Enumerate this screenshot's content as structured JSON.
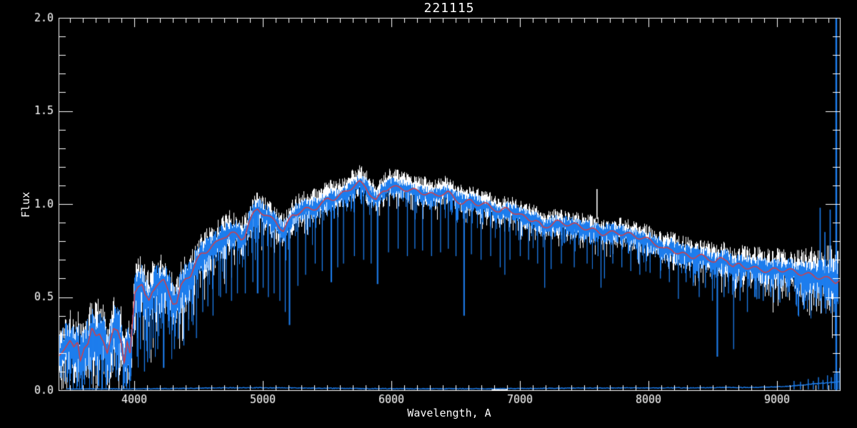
{
  "window": {
    "background": "#000000"
  },
  "chart_data": {
    "type": "line",
    "title": "221115",
    "xlabel": "Wavelength, A",
    "ylabel": "Flux",
    "xlim": [
      3411,
      9489
    ],
    "ylim": [
      0.0,
      2.0
    ],
    "x_major_ticks": [
      4000,
      5000,
      6000,
      7000,
      8000,
      9000
    ],
    "x_tick_labels": [
      "4000",
      "5000",
      "6000",
      "7000",
      "8000",
      "9000"
    ],
    "x_minor_step": 100,
    "y_major_ticks": [
      0.0,
      0.5,
      1.0,
      1.5,
      2.0
    ],
    "y_tick_labels": [
      "0.0",
      "0.5",
      "1.0",
      "1.5",
      "2.0"
    ],
    "y_minor_step": 0.1,
    "grid": false,
    "legend": null,
    "colors": {
      "background": "#000000",
      "axis": "#ffffff",
      "observed_spectrum": "#ffffff",
      "overlay_spectrum": "#1d7ded",
      "model_fit": "#e13b3b",
      "error_spectrum": "#1d7ded"
    },
    "series": [
      {
        "name": "observed-spectrum",
        "color": "#ffffff",
        "role": "noisy-background"
      },
      {
        "name": "overlay-spectrum",
        "color": "#1d7ded",
        "role": "noisy-foreground-with-absorption-spikes"
      },
      {
        "name": "model-fit",
        "color": "#e13b3b",
        "role": "smooth-model"
      },
      {
        "name": "error-spectrum",
        "color": "#1d7ded",
        "role": "bottom-error-array"
      }
    ],
    "noise_seed": 1337,
    "model_points": [
      [
        3411,
        0.17
      ],
      [
        3450,
        0.22
      ],
      [
        3470,
        0.24
      ],
      [
        3500,
        0.26
      ],
      [
        3530,
        0.22
      ],
      [
        3560,
        0.26
      ],
      [
        3580,
        0.17
      ],
      [
        3610,
        0.24
      ],
      [
        3640,
        0.25
      ],
      [
        3670,
        0.33
      ],
      [
        3700,
        0.3
      ],
      [
        3730,
        0.32
      ],
      [
        3760,
        0.27
      ],
      [
        3790,
        0.19
      ],
      [
        3815,
        0.26
      ],
      [
        3840,
        0.33
      ],
      [
        3870,
        0.33
      ],
      [
        3895,
        0.27
      ],
      [
        3922,
        0.13
      ],
      [
        3945,
        0.24
      ],
      [
        3968,
        0.18
      ],
      [
        3990,
        0.4
      ],
      [
        4005,
        0.53
      ],
      [
        4030,
        0.56
      ],
      [
        4060,
        0.56
      ],
      [
        4085,
        0.5
      ],
      [
        4115,
        0.48
      ],
      [
        4140,
        0.54
      ],
      [
        4170,
        0.57
      ],
      [
        4200,
        0.58
      ],
      [
        4230,
        0.59
      ],
      [
        4260,
        0.55
      ],
      [
        4300,
        0.48
      ],
      [
        4330,
        0.47
      ],
      [
        4360,
        0.55
      ],
      [
        4400,
        0.6
      ],
      [
        4440,
        0.62
      ],
      [
        4480,
        0.68
      ],
      [
        4520,
        0.72
      ],
      [
        4560,
        0.74
      ],
      [
        4600,
        0.77
      ],
      [
        4650,
        0.79
      ],
      [
        4700,
        0.83
      ],
      [
        4750,
        0.85
      ],
      [
        4790,
        0.84
      ],
      [
        4830,
        0.82
      ],
      [
        4860,
        0.84
      ],
      [
        4890,
        0.9
      ],
      [
        4930,
        0.95
      ],
      [
        4960,
        0.975
      ],
      [
        5000,
        0.95
      ],
      [
        5048,
        0.92
      ],
      [
        5100,
        0.9
      ],
      [
        5160,
        0.85
      ],
      [
        5200,
        0.9
      ],
      [
        5233,
        0.94
      ],
      [
        5280,
        0.96
      ],
      [
        5330,
        0.975
      ],
      [
        5380,
        0.98
      ],
      [
        5420,
        0.99
      ],
      [
        5470,
        1.01
      ],
      [
        5510,
        1.03
      ],
      [
        5560,
        1.03
      ],
      [
        5600,
        1.04
      ],
      [
        5650,
        1.06
      ],
      [
        5700,
        1.09
      ],
      [
        5750,
        1.11
      ],
      [
        5800,
        1.09
      ],
      [
        5845,
        1.05
      ],
      [
        5881,
        1.02
      ],
      [
        5910,
        1.05
      ],
      [
        5940,
        1.08
      ],
      [
        5990,
        1.1
      ],
      [
        6040,
        1.09
      ],
      [
        6090,
        1.085
      ],
      [
        6150,
        1.07
      ],
      [
        6220,
        1.06
      ],
      [
        6280,
        1.05
      ],
      [
        6340,
        1.04
      ],
      [
        6400,
        1.06
      ],
      [
        6440,
        1.065
      ],
      [
        6500,
        1.03
      ],
      [
        6560,
        1.01
      ],
      [
        6620,
        1.02
      ],
      [
        6680,
        1.0
      ],
      [
        6740,
        0.99
      ],
      [
        6800,
        0.97
      ],
      [
        6844,
        0.95
      ],
      [
        6900,
        0.97
      ],
      [
        6950,
        0.96
      ],
      [
        7000,
        0.94
      ],
      [
        7060,
        0.93
      ],
      [
        7120,
        0.92
      ],
      [
        7180,
        0.875
      ],
      [
        7230,
        0.89
      ],
      [
        7280,
        0.9
      ],
      [
        7340,
        0.89
      ],
      [
        7400,
        0.885
      ],
      [
        7460,
        0.875
      ],
      [
        7520,
        0.87
      ],
      [
        7580,
        0.86
      ],
      [
        7640,
        0.85
      ],
      [
        7700,
        0.85
      ],
      [
        7760,
        0.85
      ],
      [
        7820,
        0.84
      ],
      [
        7880,
        0.825
      ],
      [
        7940,
        0.815
      ],
      [
        8000,
        0.8
      ],
      [
        8060,
        0.785
      ],
      [
        8120,
        0.755
      ],
      [
        8180,
        0.765
      ],
      [
        8240,
        0.74
      ],
      [
        8300,
        0.73
      ],
      [
        8360,
        0.72
      ],
      [
        8420,
        0.715
      ],
      [
        8480,
        0.7
      ],
      [
        8520,
        0.68
      ],
      [
        8560,
        0.695
      ],
      [
        8610,
        0.7
      ],
      [
        8660,
        0.66
      ],
      [
        8710,
        0.675
      ],
      [
        8760,
        0.67
      ],
      [
        8820,
        0.66
      ],
      [
        8880,
        0.655
      ],
      [
        8940,
        0.64
      ],
      [
        9000,
        0.645
      ],
      [
        9060,
        0.64
      ],
      [
        9120,
        0.632
      ],
      [
        9180,
        0.625
      ],
      [
        9240,
        0.62
      ],
      [
        9300,
        0.617
      ],
      [
        9360,
        0.61
      ],
      [
        9420,
        0.6
      ],
      [
        9455,
        0.59
      ],
      [
        9489,
        0.6
      ]
    ],
    "noise_amplitude": [
      [
        3411,
        0.12
      ],
      [
        3700,
        0.12
      ],
      [
        3900,
        0.11
      ],
      [
        4100,
        0.1
      ],
      [
        4300,
        0.09
      ],
      [
        4600,
        0.08
      ],
      [
        4900,
        0.06
      ],
      [
        5200,
        0.05
      ],
      [
        5600,
        0.045
      ],
      [
        6000,
        0.042
      ],
      [
        6500,
        0.04
      ],
      [
        7000,
        0.04
      ],
      [
        7500,
        0.042
      ],
      [
        8000,
        0.045
      ],
      [
        8400,
        0.05
      ],
      [
        8800,
        0.055
      ],
      [
        9100,
        0.065
      ],
      [
        9300,
        0.08
      ],
      [
        9489,
        0.1
      ]
    ],
    "white_top_bias": [
      [
        3411,
        0.0
      ],
      [
        5000,
        0.01
      ],
      [
        5600,
        0.03
      ],
      [
        6200,
        0.03
      ],
      [
        6800,
        0.02
      ],
      [
        7200,
        0.01
      ],
      [
        8000,
        0.015
      ],
      [
        8700,
        0.02
      ],
      [
        9489,
        0.03
      ]
    ],
    "deep_absorption_spikes": [
      [
        3556,
        0.02
      ],
      [
        3585,
        0.08
      ],
      [
        3611,
        0.03
      ],
      [
        3660,
        0.1
      ],
      [
        3700,
        0.08
      ],
      [
        3722,
        0.02
      ],
      [
        3760,
        0.1
      ],
      [
        3800,
        0.04
      ],
      [
        3830,
        0.1
      ],
      [
        3855,
        0.07
      ],
      [
        3880,
        0.12
      ],
      [
        3911,
        0.01
      ],
      [
        3933,
        0.02
      ],
      [
        3968,
        0.05
      ],
      [
        4020,
        0.18
      ],
      [
        4045,
        0.22
      ],
      [
        4077,
        0.1
      ],
      [
        4101,
        0.15
      ],
      [
        4144,
        0.28
      ],
      [
        4180,
        0.22
      ],
      [
        4226,
        0.12
      ],
      [
        4272,
        0.3
      ],
      [
        4310,
        0.22
      ],
      [
        4340,
        0.28
      ],
      [
        4383,
        0.24
      ],
      [
        4420,
        0.32
      ],
      [
        4455,
        0.35
      ],
      [
        4481,
        0.28
      ],
      [
        4530,
        0.42
      ],
      [
        4570,
        0.45
      ],
      [
        4610,
        0.4
      ],
      [
        4668,
        0.5
      ],
      [
        4712,
        0.52
      ],
      [
        4754,
        0.48
      ],
      [
        4800,
        0.52
      ],
      [
        4861,
        0.52
      ],
      [
        4920,
        0.58
      ],
      [
        4957,
        0.52
      ],
      [
        5000,
        0.55
      ],
      [
        5040,
        0.5
      ],
      [
        5085,
        0.52
      ],
      [
        5130,
        0.48
      ],
      [
        5172,
        0.42
      ],
      [
        5205,
        0.35
      ],
      [
        5270,
        0.56
      ],
      [
        5330,
        0.62
      ],
      [
        5405,
        0.68
      ],
      [
        5460,
        0.64
      ],
      [
        5530,
        0.58
      ],
      [
        5580,
        0.66
      ],
      [
        5625,
        0.68
      ],
      [
        5710,
        0.72
      ],
      [
        5782,
        0.7
      ],
      [
        5840,
        0.68
      ],
      [
        5890,
        0.57
      ],
      [
        5975,
        0.74
      ],
      [
        6050,
        0.76
      ],
      [
        6122,
        0.72
      ],
      [
        6180,
        0.76
      ],
      [
        6240,
        0.75
      ],
      [
        6310,
        0.72
      ],
      [
        6380,
        0.74
      ],
      [
        6440,
        0.76
      ],
      [
        6500,
        0.72
      ],
      [
        6563,
        0.4
      ],
      [
        6620,
        0.73
      ],
      [
        6695,
        0.7
      ],
      [
        6770,
        0.72
      ],
      [
        6844,
        0.66
      ],
      [
        6880,
        0.62
      ],
      [
        6920,
        0.7
      ],
      [
        7000,
        0.72
      ],
      [
        7065,
        0.7
      ],
      [
        7135,
        0.68
      ],
      [
        7190,
        0.55
      ],
      [
        7240,
        0.65
      ],
      [
        7320,
        0.68
      ],
      [
        7420,
        0.66
      ],
      [
        7520,
        0.68
      ],
      [
        7605,
        0.72
      ],
      [
        7628,
        0.55
      ],
      [
        7655,
        0.6
      ],
      [
        7720,
        0.68
      ],
      [
        7790,
        0.66
      ],
      [
        7860,
        0.64
      ],
      [
        7930,
        0.62
      ],
      [
        8010,
        0.63
      ],
      [
        8090,
        0.6
      ],
      [
        8160,
        0.58
      ],
      [
        8230,
        0.49
      ],
      [
        8290,
        0.58
      ],
      [
        8345,
        0.56
      ],
      [
        8392,
        0.5
      ],
      [
        8440,
        0.55
      ],
      [
        8495,
        0.48
      ],
      [
        8533,
        0.18
      ],
      [
        8585,
        0.5
      ],
      [
        8620,
        0.52
      ],
      [
        8660,
        0.22
      ],
      [
        8710,
        0.48
      ],
      [
        8767,
        0.42
      ],
      [
        8830,
        0.5
      ],
      [
        8890,
        0.48
      ],
      [
        8950,
        0.5
      ],
      [
        9020,
        0.47
      ],
      [
        9080,
        0.5
      ],
      [
        9150,
        0.45
      ],
      [
        9220,
        0.48
      ],
      [
        9300,
        0.45
      ],
      [
        9370,
        0.44
      ],
      [
        9440,
        0.42
      ]
    ],
    "up_spikes": [
      {
        "wl": 7597,
        "lo": 0.92,
        "hi": 1.08,
        "color": "white"
      },
      {
        "wl": 9333,
        "lo": 0.48,
        "hi": 0.98,
        "color": "blue"
      },
      {
        "wl": 9370,
        "lo": 0.5,
        "hi": 0.85,
        "color": "blue"
      },
      {
        "wl": 9411,
        "lo": 0.45,
        "hi": 0.97,
        "color": "blue"
      }
    ],
    "full_height_lines": [
      {
        "wl": 9461,
        "lo": 0.0,
        "hi": 2.0,
        "color": "blue"
      }
    ],
    "error_points": [
      [
        3470,
        0.007
      ],
      [
        3800,
        0.007
      ],
      [
        4200,
        0.008
      ],
      [
        4600,
        0.012
      ],
      [
        5000,
        0.013
      ],
      [
        5300,
        0.012
      ],
      [
        5600,
        0.01
      ],
      [
        6000,
        0.008
      ],
      [
        6400,
        0.008
      ],
      [
        6800,
        0.008
      ],
      [
        7200,
        0.01
      ],
      [
        7600,
        0.012
      ],
      [
        8000,
        0.012
      ],
      [
        8400,
        0.013
      ],
      [
        8800,
        0.015
      ],
      [
        9000,
        0.018
      ],
      [
        9100,
        0.022
      ],
      [
        9200,
        0.028
      ],
      [
        9300,
        0.035
      ],
      [
        9400,
        0.04
      ],
      [
        9489,
        0.045
      ]
    ],
    "error_end_spikes": [
      [
        9130,
        0.05
      ],
      [
        9180,
        0.045
      ],
      [
        9240,
        0.06
      ],
      [
        9280,
        0.05
      ],
      [
        9320,
        0.07
      ],
      [
        9355,
        0.055
      ],
      [
        9390,
        0.08
      ],
      [
        9420,
        0.07
      ],
      [
        9445,
        0.09
      ],
      [
        9470,
        0.1
      ],
      [
        9485,
        0.12
      ]
    ],
    "error_white_dash": {
      "wl0": 6780,
      "wl1": 6905,
      "flux": 0.004
    }
  }
}
